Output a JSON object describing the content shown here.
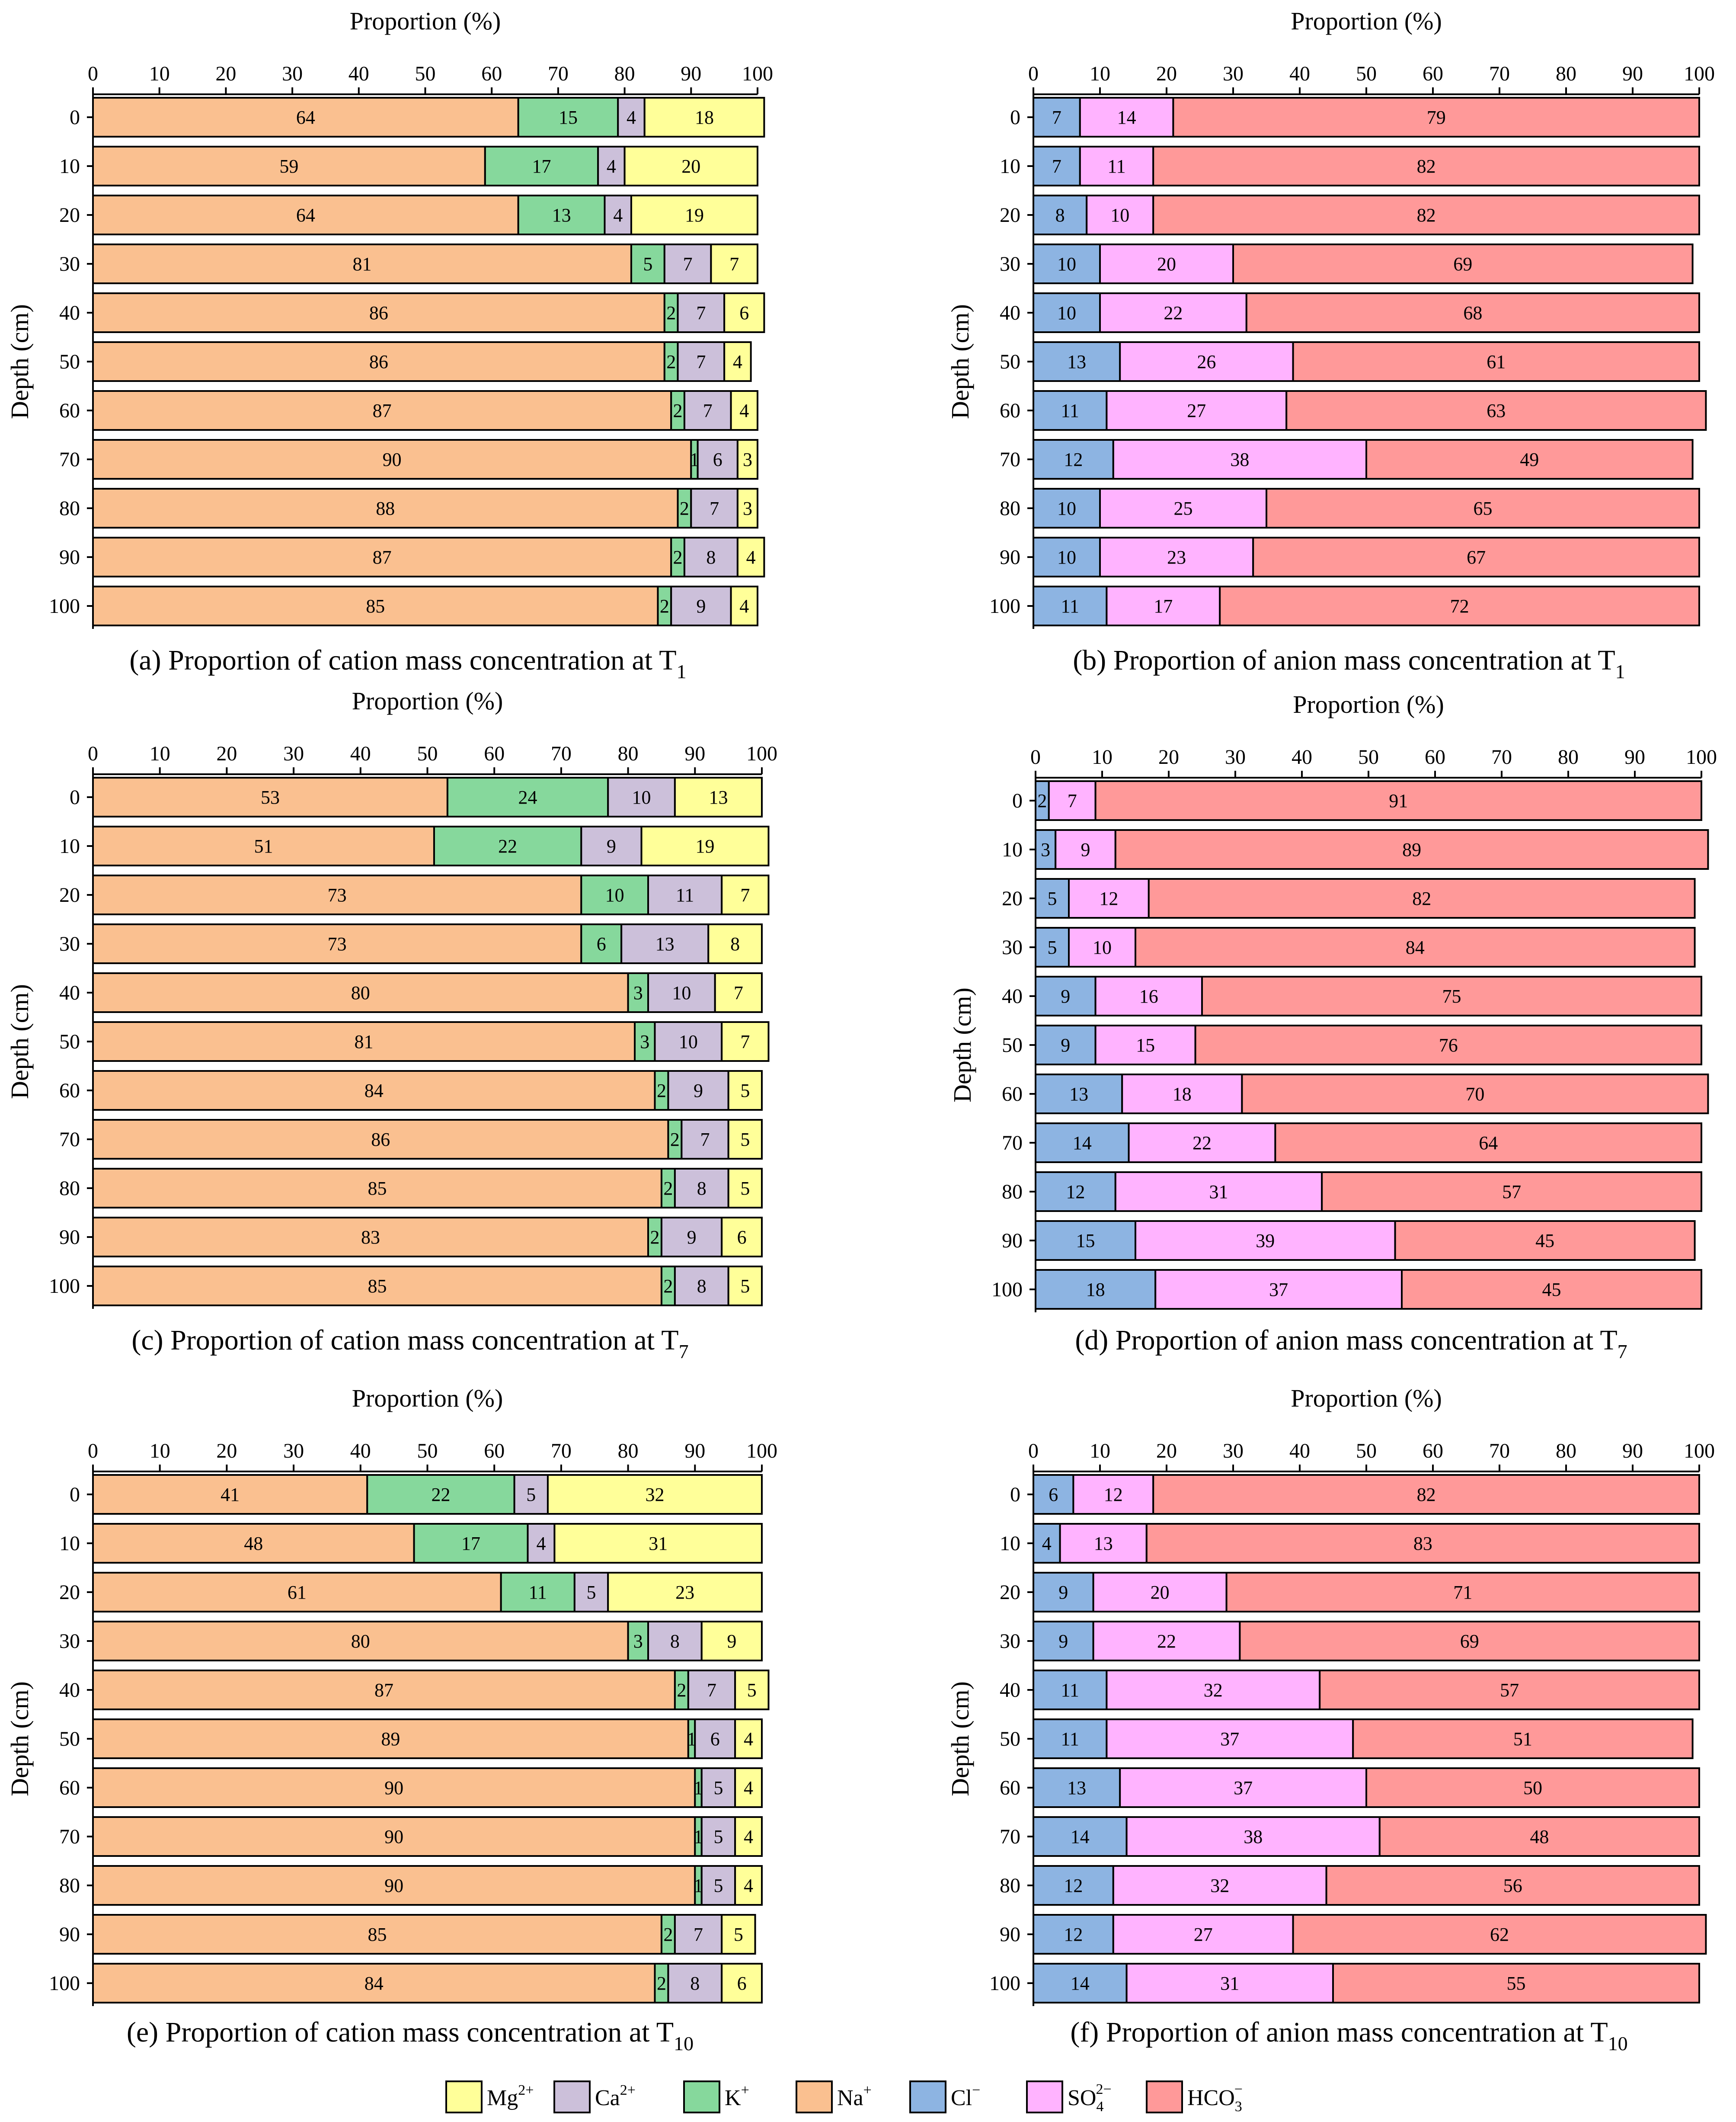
{
  "colors": {
    "Mg": "#ffff99",
    "Ca": "#ccc0da",
    "K": "#86d89c",
    "Na": "#fac090",
    "Cl": "#8db4e2",
    "SO4": "#ffb3ff",
    "HCO3": "#ff9999"
  },
  "legend": {
    "items": [
      {
        "key": "Mg",
        "label": "Mg",
        "sup": "2+",
        "sub": ""
      },
      {
        "key": "Ca",
        "label": "Ca",
        "sup": "2+",
        "sub": ""
      },
      {
        "key": "K",
        "label": "K",
        "sup": "+",
        "sub": ""
      },
      {
        "key": "Na",
        "label": "Na",
        "sup": "+",
        "sub": ""
      },
      {
        "key": "Cl",
        "label": "Cl",
        "sup": "−",
        "sub": ""
      },
      {
        "key": "SO4",
        "label": "SO",
        "sup": "2−",
        "sub": "4"
      },
      {
        "key": "HCO3",
        "label": "HCO",
        "sup": "−",
        "sub": "3"
      }
    ]
  },
  "chart_data": [
    {
      "type": "bar",
      "orientation": "horizontal-stacked",
      "title": "Proportion of cation mass concentration at T",
      "caption_prefix": "(a) Proportion of cation mass concentration at T",
      "caption_sub": "1",
      "xlabel": "Proportion (%)",
      "ylabel": "Depth (cm)",
      "xlim": [
        0,
        100
      ],
      "xticks": [
        0,
        10,
        20,
        30,
        40,
        50,
        60,
        70,
        80,
        90,
        100
      ],
      "categories": [
        "0",
        "10",
        "20",
        "30",
        "40",
        "50",
        "60",
        "70",
        "80",
        "90",
        "100"
      ],
      "series": [
        {
          "key": "Na",
          "name": "Na+",
          "values": [
            64,
            59,
            64,
            81,
            86,
            86,
            87,
            90,
            88,
            87,
            85
          ]
        },
        {
          "key": "K",
          "name": "K+",
          "values": [
            15,
            17,
            13,
            5,
            2,
            2,
            2,
            1,
            2,
            2,
            2
          ]
        },
        {
          "key": "Ca",
          "name": "Ca2+",
          "values": [
            4,
            4,
            4,
            7,
            7,
            7,
            7,
            6,
            7,
            8,
            9
          ]
        },
        {
          "key": "Mg",
          "name": "Mg2+",
          "values": [
            18,
            20,
            19,
            7,
            6,
            4,
            4,
            3,
            3,
            4,
            4
          ]
        }
      ]
    },
    {
      "type": "bar",
      "orientation": "horizontal-stacked",
      "title": "Proportion of anion mass concentration at T",
      "caption_prefix": "(b) Proportion of anion mass concentration at T",
      "caption_sub": "1",
      "xlabel": "Proportion (%)",
      "ylabel": "Depth (cm)",
      "xlim": [
        0,
        100
      ],
      "xticks": [
        0,
        10,
        20,
        30,
        40,
        50,
        60,
        70,
        80,
        90,
        100
      ],
      "categories": [
        "0",
        "10",
        "20",
        "30",
        "40",
        "50",
        "60",
        "70",
        "80",
        "90",
        "100"
      ],
      "series": [
        {
          "key": "Cl",
          "name": "Cl−",
          "values": [
            7,
            7,
            8,
            10,
            10,
            13,
            11,
            12,
            10,
            10,
            11
          ]
        },
        {
          "key": "SO4",
          "name": "SO42−",
          "values": [
            14,
            11,
            10,
            20,
            22,
            26,
            27,
            38,
            25,
            23,
            17
          ]
        },
        {
          "key": "HCO3",
          "name": "HCO3−",
          "values": [
            79,
            82,
            82,
            69,
            68,
            61,
            63,
            49,
            65,
            67,
            72
          ]
        }
      ]
    },
    {
      "type": "bar",
      "orientation": "horizontal-stacked",
      "title": "Proportion of cation mass concentration at T",
      "caption_prefix": "(c) Proportion of cation mass concentration at T",
      "caption_sub": "7",
      "xlabel": "Proportion (%)",
      "ylabel": "Depth (cm)",
      "xlim": [
        0,
        100
      ],
      "xticks": [
        0,
        10,
        20,
        30,
        40,
        50,
        60,
        70,
        80,
        90,
        100
      ],
      "categories": [
        "0",
        "10",
        "20",
        "30",
        "40",
        "50",
        "60",
        "70",
        "80",
        "90",
        "100"
      ],
      "series": [
        {
          "key": "Na",
          "name": "Na+",
          "values": [
            53,
            51,
            73,
            73,
            80,
            81,
            84,
            86,
            85,
            83,
            85
          ]
        },
        {
          "key": "K",
          "name": "K+",
          "values": [
            24,
            22,
            10,
            6,
            3,
            3,
            2,
            2,
            2,
            2,
            2
          ]
        },
        {
          "key": "Ca",
          "name": "Ca2+",
          "values": [
            10,
            9,
            11,
            13,
            10,
            10,
            9,
            7,
            8,
            9,
            8
          ]
        },
        {
          "key": "Mg",
          "name": "Mg2+",
          "values": [
            13,
            19,
            7,
            8,
            7,
            7,
            5,
            5,
            5,
            6,
            5
          ]
        }
      ]
    },
    {
      "type": "bar",
      "orientation": "horizontal-stacked",
      "title": "Proportion of anion mass concentration at T",
      "caption_prefix": "(d) Proportion of anion mass concentration at T",
      "caption_sub": "7",
      "xlabel": "Proportion (%)",
      "ylabel": "Depth (cm)",
      "xlim": [
        0,
        100
      ],
      "xticks": [
        0,
        10,
        20,
        30,
        40,
        50,
        60,
        70,
        80,
        90,
        100
      ],
      "categories": [
        "0",
        "10",
        "20",
        "30",
        "40",
        "50",
        "60",
        "70",
        "80",
        "90",
        "100"
      ],
      "series": [
        {
          "key": "Cl",
          "name": "Cl−",
          "values": [
            2,
            3,
            5,
            5,
            9,
            9,
            13,
            14,
            12,
            15,
            18
          ]
        },
        {
          "key": "SO4",
          "name": "SO42−",
          "values": [
            7,
            9,
            12,
            10,
            16,
            15,
            18,
            22,
            31,
            39,
            37
          ]
        },
        {
          "key": "HCO3",
          "name": "HCO3−",
          "values": [
            91,
            89,
            82,
            84,
            75,
            76,
            70,
            64,
            57,
            45,
            45
          ]
        }
      ]
    },
    {
      "type": "bar",
      "orientation": "horizontal-stacked",
      "title": "Proportion of cation mass concentration at T",
      "caption_prefix": "(e) Proportion of cation mass concentration at T",
      "caption_sub": "10",
      "xlabel": "Proportion (%)",
      "ylabel": "Depth (cm)",
      "xlim": [
        0,
        100
      ],
      "xticks": [
        0,
        10,
        20,
        30,
        40,
        50,
        60,
        70,
        80,
        90,
        100
      ],
      "categories": [
        "0",
        "10",
        "20",
        "30",
        "40",
        "50",
        "60",
        "70",
        "80",
        "90",
        "100"
      ],
      "series": [
        {
          "key": "Na",
          "name": "Na+",
          "values": [
            41,
            48,
            61,
            80,
            87,
            89,
            90,
            90,
            90,
            85,
            84
          ]
        },
        {
          "key": "K",
          "name": "K+",
          "values": [
            22,
            17,
            11,
            3,
            2,
            1,
            1,
            1,
            1,
            2,
            2
          ]
        },
        {
          "key": "Ca",
          "name": "Ca2+",
          "values": [
            5,
            4,
            5,
            8,
            7,
            6,
            5,
            5,
            5,
            7,
            8
          ]
        },
        {
          "key": "Mg",
          "name": "Mg2+",
          "values": [
            32,
            31,
            23,
            9,
            5,
            4,
            4,
            4,
            4,
            5,
            6
          ]
        }
      ]
    },
    {
      "type": "bar",
      "orientation": "horizontal-stacked",
      "title": "Proportion of anion mass concentration at T",
      "caption_prefix": "(f) Proportion of anion mass concentration at T",
      "caption_sub": "10",
      "xlabel": "Proportion (%)",
      "ylabel": "Depth (cm)",
      "xlim": [
        0,
        100
      ],
      "xticks": [
        0,
        10,
        20,
        30,
        40,
        50,
        60,
        70,
        80,
        90,
        100
      ],
      "categories": [
        "0",
        "10",
        "20",
        "30",
        "40",
        "50",
        "60",
        "70",
        "80",
        "90",
        "100"
      ],
      "series": [
        {
          "key": "Cl",
          "name": "Cl−",
          "values": [
            6,
            4,
            9,
            9,
            11,
            11,
            13,
            14,
            12,
            12,
            14
          ]
        },
        {
          "key": "SO4",
          "name": "SO42−",
          "values": [
            12,
            13,
            20,
            22,
            32,
            37,
            37,
            38,
            32,
            27,
            31
          ]
        },
        {
          "key": "HCO3",
          "name": "HCO3−",
          "values": [
            82,
            83,
            71,
            69,
            57,
            51,
            50,
            48,
            56,
            62,
            55
          ]
        }
      ]
    }
  ]
}
